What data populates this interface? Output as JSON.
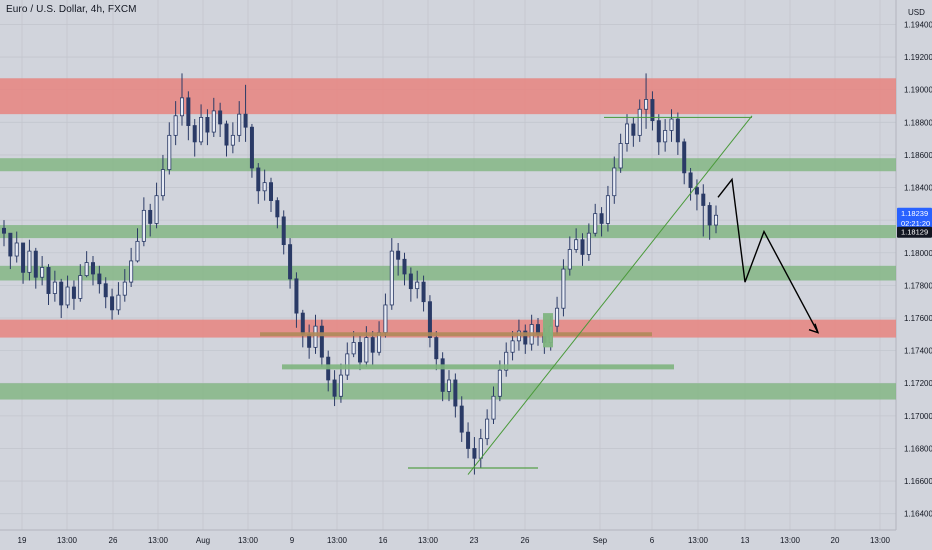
{
  "symbol_title": "Euro / U.S. Dollar, 4h, FXCM",
  "currency_label": "USD",
  "colors": {
    "background": "#d1d4dc",
    "grid": "#c3c6ce",
    "candle": "#2a3a66",
    "resistance_zone": "#e8847f",
    "support_zone": "#7fb47f",
    "price_tag_blue": "#2962ff",
    "price_tag_dark": "#131722",
    "trendline": "#4a9a3a",
    "projection": "#000000"
  },
  "chart_data": {
    "type": "candlestick",
    "y_axis": {
      "ylim": [
        1.163,
        1.1955
      ],
      "ticks": [
        "1.16400",
        "1.16600",
        "1.16800",
        "1.17000",
        "1.17200",
        "1.17400",
        "1.17600",
        "1.17800",
        "1.18000",
        "1.18200",
        "1.18400",
        "1.18600",
        "1.18800",
        "1.19000",
        "1.19200",
        "1.19400"
      ]
    },
    "x_axis": {
      "ticks": [
        "19",
        "13:00",
        "26",
        "13:00",
        "Aug",
        "13:00",
        "9",
        "13:00",
        "16",
        "13:00",
        "23",
        "26",
        "Sep",
        "6",
        "13:00",
        "13",
        "13:00",
        "20",
        "13:00"
      ]
    },
    "current_prices": {
      "bid": "1.18239",
      "countdown": "02:21:20",
      "ask": "1.18129"
    },
    "zones": [
      {
        "kind": "resistance",
        "from": 1.1885,
        "to": 1.1907
      },
      {
        "kind": "support",
        "from": 1.185,
        "to": 1.1858
      },
      {
        "kind": "support",
        "from": 1.1809,
        "to": 1.1817
      },
      {
        "kind": "support",
        "from": 1.1783,
        "to": 1.1792
      },
      {
        "kind": "resistance",
        "from": 1.1748,
        "to": 1.1759
      },
      {
        "kind": "support",
        "from": 1.171,
        "to": 1.172
      }
    ],
    "annotation_lines": [
      {
        "kind": "resistance-level",
        "price": 1.175
      },
      {
        "kind": "support-level",
        "price": 1.173
      },
      {
        "kind": "swing-high",
        "price": 1.1883
      },
      {
        "kind": "swing-low",
        "price": 1.1668
      }
    ],
    "projection_path": [
      1.1845,
      1.1782,
      1.1813,
      1.1751
    ],
    "series": [
      {
        "close": [
          1.1812,
          1.1798,
          1.1806,
          1.1788,
          1.1801,
          1.1785,
          1.1791,
          1.1775,
          1.1782,
          1.1768,
          1.1779,
          1.1772,
          1.1786,
          1.1794,
          1.1787,
          1.1781,
          1.1773,
          1.1765,
          1.1774,
          1.1782,
          1.1795,
          1.1807,
          1.1826,
          1.1818,
          1.1835,
          1.1851,
          1.1872,
          1.1884,
          1.1895,
          1.1878,
          1.1868,
          1.1883,
          1.1874,
          1.1887,
          1.1879,
          1.1866,
          1.1872,
          1.1885,
          1.1877,
          1.1852,
          1.1838,
          1.1843,
          1.1832,
          1.1822,
          1.1805,
          1.1784,
          1.1763,
          1.175,
          1.1742,
          1.1755,
          1.1736,
          1.1722,
          1.1712,
          1.1725,
          1.1738,
          1.1745,
          1.1733,
          1.1748,
          1.1739,
          1.1751,
          1.1768,
          1.1801,
          1.1796,
          1.1787,
          1.1778,
          1.1782,
          1.177,
          1.1748,
          1.1735,
          1.1715,
          1.1722,
          1.1706,
          1.169,
          1.168,
          1.1674,
          1.1686,
          1.1698,
          1.1712,
          1.1728,
          1.1739,
          1.1746,
          1.1752,
          1.1744,
          1.1756,
          1.175,
          1.1745,
          1.1755,
          1.1766,
          1.179,
          1.1802,
          1.1808,
          1.1799,
          1.1812,
          1.1824,
          1.1818,
          1.1835,
          1.1852,
          1.1867,
          1.1879,
          1.1872,
          1.1888,
          1.1894,
          1.1881,
          1.1868,
          1.1875,
          1.1882,
          1.1868,
          1.1849,
          1.184,
          1.1836,
          1.1829,
          1.1817,
          1.1823
        ],
        "high": [
          1.182,
          1.1812,
          1.1813,
          1.1806,
          1.1808,
          1.1803,
          1.1798,
          1.1793,
          1.1789,
          1.1784,
          1.1786,
          1.1783,
          1.1793,
          1.1801,
          1.1798,
          1.1792,
          1.1785,
          1.1778,
          1.1782,
          1.179,
          1.1803,
          1.1815,
          1.1834,
          1.183,
          1.1843,
          1.186,
          1.188,
          1.1893,
          1.191,
          1.1899,
          1.1882,
          1.1891,
          1.1888,
          1.1895,
          1.1892,
          1.1881,
          1.188,
          1.1893,
          1.1903,
          1.1879,
          1.1855,
          1.1851,
          1.1846,
          1.1834,
          1.1826,
          1.1809,
          1.1788,
          1.1765,
          1.1756,
          1.1762,
          1.1759,
          1.174,
          1.1728,
          1.1732,
          1.1745,
          1.1752,
          1.1749,
          1.1755,
          1.1752,
          1.1758,
          1.1775,
          1.1809,
          1.1806,
          1.18,
          1.1791,
          1.1789,
          1.1786,
          1.1774,
          1.1752,
          1.1739,
          1.1728,
          1.1726,
          1.1712,
          1.1696,
          1.1687,
          1.1692,
          1.1704,
          1.1718,
          1.1734,
          1.1745,
          1.1752,
          1.1759,
          1.1756,
          1.1762,
          1.176,
          1.1754,
          1.1761,
          1.1773,
          1.1796,
          1.181,
          1.1815,
          1.1812,
          1.1818,
          1.183,
          1.1828,
          1.1841,
          1.1859,
          1.1873,
          1.1885,
          1.1883,
          1.1894,
          1.191,
          1.1899,
          1.1885,
          1.1882,
          1.1888,
          1.1886,
          1.187,
          1.1852,
          1.1845,
          1.1842,
          1.1831,
          1.1829
        ],
        "low": [
          1.1804,
          1.179,
          1.1794,
          1.1781,
          1.1783,
          1.1778,
          1.178,
          1.1768,
          1.177,
          1.176,
          1.1766,
          1.1765,
          1.177,
          1.1785,
          1.178,
          1.1775,
          1.1766,
          1.1759,
          1.1762,
          1.177,
          1.1779,
          1.1794,
          1.1804,
          1.181,
          1.1815,
          1.1832,
          1.1848,
          1.1866,
          1.1878,
          1.1869,
          1.1859,
          1.1866,
          1.1866,
          1.1871,
          1.1871,
          1.1859,
          1.1861,
          1.1868,
          1.1868,
          1.1846,
          1.183,
          1.1832,
          1.1825,
          1.1815,
          1.1799,
          1.1778,
          1.1754,
          1.1742,
          1.1735,
          1.1738,
          1.173,
          1.1715,
          1.1706,
          1.1708,
          1.1722,
          1.1736,
          1.1728,
          1.173,
          1.1731,
          1.1737,
          1.1748,
          1.1765,
          1.1786,
          1.178,
          1.177,
          1.1772,
          1.1764,
          1.1742,
          1.1728,
          1.1709,
          1.1709,
          1.1699,
          1.1684,
          1.1674,
          1.1664,
          1.1668,
          1.1682,
          1.1695,
          1.1709,
          1.1724,
          1.1734,
          1.174,
          1.1738,
          1.174,
          1.1743,
          1.1738,
          1.174,
          1.175,
          1.1761,
          1.1786,
          1.18,
          1.1792,
          1.1795,
          1.181,
          1.181,
          1.1813,
          1.183,
          1.1849,
          1.1862,
          1.1865,
          1.1868,
          1.1876,
          1.1875,
          1.186,
          1.1862,
          1.1868,
          1.186,
          1.1842,
          1.1832,
          1.1826,
          1.181,
          1.1808,
          1.1812
        ]
      }
    ]
  }
}
